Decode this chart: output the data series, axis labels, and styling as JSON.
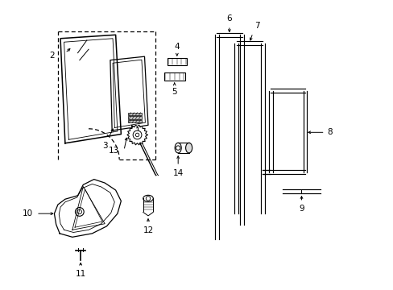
{
  "bg_color": "#ffffff",
  "line_color": "#000000",
  "figsize": [
    4.89,
    3.6
  ],
  "dpi": 100,
  "xlim": [
    0,
    10
  ],
  "ylim": [
    0,
    8
  ],
  "label_fs": 7.5,
  "parts": {
    "door_dashed": {
      "x": [
        1.1,
        3.9,
        3.9,
        1.1,
        1.1
      ],
      "y": [
        2.8,
        2.8,
        7.2,
        7.2,
        2.8
      ]
    }
  }
}
